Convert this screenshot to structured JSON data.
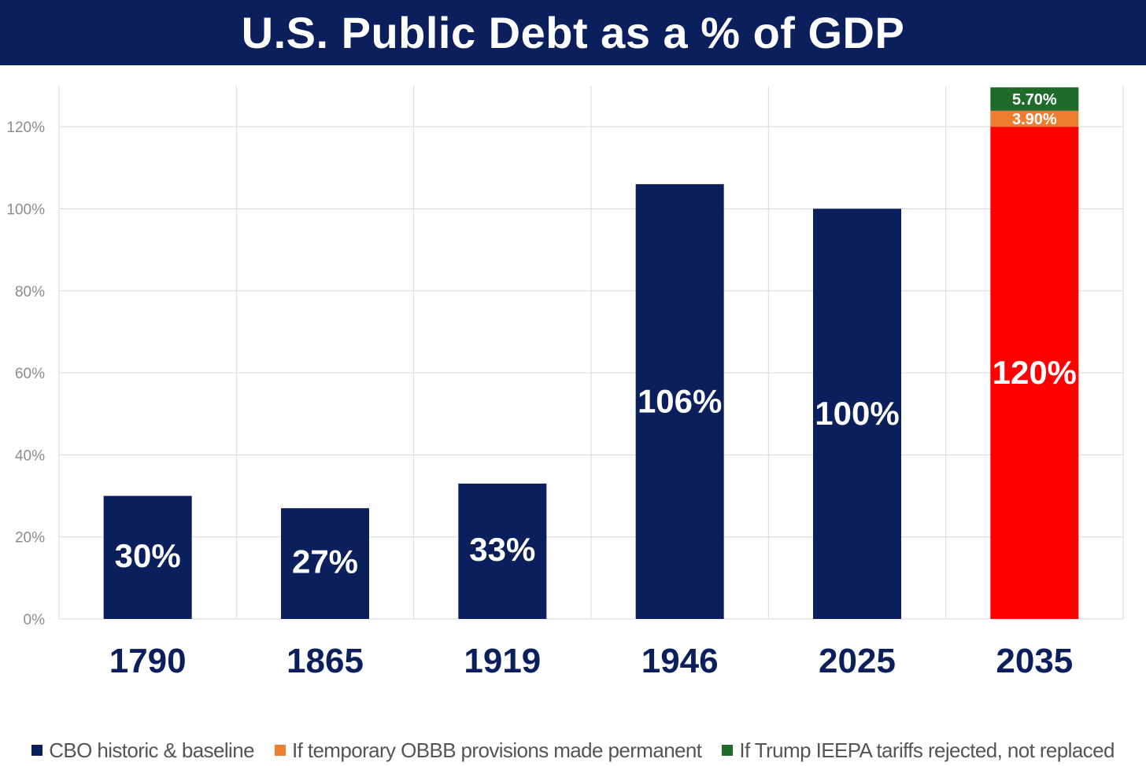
{
  "chart_data": {
    "type": "bar",
    "stacked": true,
    "title": "U.S. Public Debt as a % of GDP",
    "categories": [
      "1790",
      "1865",
      "1919",
      "1946",
      "2025",
      "2035"
    ],
    "ylim": [
      0,
      130
    ],
    "yticks": [
      0,
      20,
      40,
      60,
      80,
      100,
      120
    ],
    "ytick_labels": [
      "0%",
      "20%",
      "40%",
      "60%",
      "80%",
      "100%",
      "120%"
    ],
    "grid": true,
    "series": [
      {
        "name": "CBO historic & baseline",
        "values": [
          30,
          27,
          33,
          106,
          100,
          120
        ],
        "labels": [
          "30%",
          "27%",
          "33%",
          "106%",
          "100%",
          "120%"
        ],
        "color": "#0b1f5c",
        "point_colors": [
          "#0b1f5c",
          "#0b1f5c",
          "#0b1f5c",
          "#0b1f5c",
          "#0b1f5c",
          "#ff0000"
        ]
      },
      {
        "name": "If temporary OBBB provisions made permanent",
        "values": [
          0,
          0,
          0,
          0,
          0,
          3.9
        ],
        "labels": [
          "",
          "",
          "",
          "",
          "",
          "3.90%"
        ],
        "color": "#ed7d31"
      },
      {
        "name": "If Trump IEEPA tariffs rejected, not replaced",
        "values": [
          0,
          0,
          0,
          0,
          0,
          5.7
        ],
        "labels": [
          "",
          "",
          "",
          "",
          "",
          "5.70%"
        ],
        "color": "#1e6b2a"
      }
    ],
    "legend_position": "bottom",
    "label_style": {
      "bar_label_color": "#ffffff",
      "axis_label_color": "#8c8c8c",
      "category_label_color": "#0b1f5c",
      "grid_color": "#d9d9d9"
    }
  }
}
